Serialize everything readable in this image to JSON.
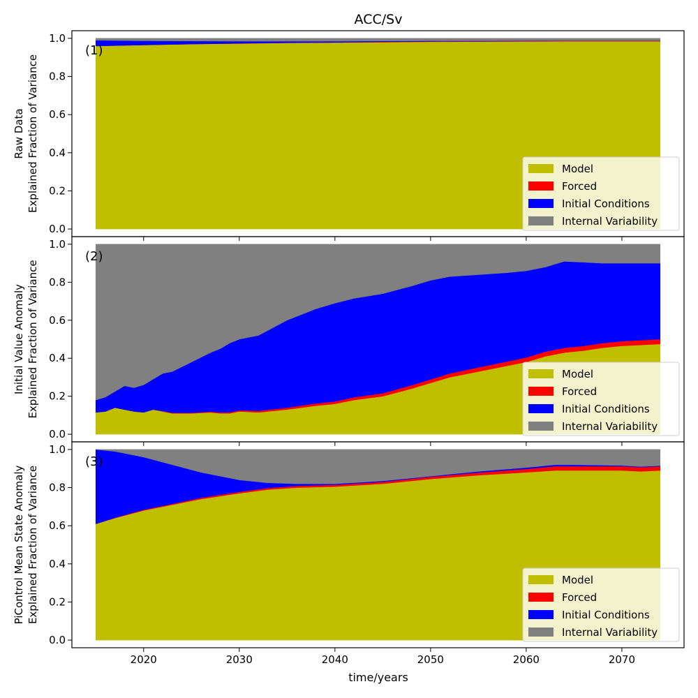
{
  "title": "ACC/Sv",
  "xlabel": "time/years",
  "x_ticks": [
    2020,
    2030,
    2040,
    2050,
    2060,
    2070
  ],
  "y_ticks": [
    0.0,
    0.2,
    0.4,
    0.6,
    0.8,
    1.0
  ],
  "legend": [
    "Model",
    "Forced",
    "Initial Conditions",
    "Internal Variability"
  ],
  "colors": {
    "Model": "#bfbf00",
    "Forced": "#ff0000",
    "Initial Conditions": "#0000ff",
    "Internal Variability": "#808080"
  },
  "chart_data": [
    {
      "type": "area",
      "stacked": true,
      "panel_label": "(1)",
      "ylabel_line1": "Raw Data",
      "ylabel_line2": "Explained Fraction of Variance",
      "xlim": [
        2012.5,
        2076.5
      ],
      "ylim": [
        -0.04,
        1.04
      ],
      "legend_position": "bottom-right",
      "x": [
        2015,
        2020,
        2025,
        2030,
        2035,
        2040,
        2045,
        2050,
        2055,
        2060,
        2065,
        2070,
        2074
      ],
      "series": [
        {
          "name": "Model",
          "values": [
            0.96,
            0.965,
            0.97,
            0.973,
            0.976,
            0.978,
            0.98,
            0.982,
            0.983,
            0.984,
            0.985,
            0.985,
            0.985
          ]
        },
        {
          "name": "Forced",
          "values": [
            0.0,
            0.0,
            0.0,
            0.001,
            0.001,
            0.001,
            0.002,
            0.002,
            0.002,
            0.002,
            0.002,
            0.002,
            0.002
          ]
        },
        {
          "name": "Initial Conditions",
          "values": [
            0.03,
            0.022,
            0.016,
            0.011,
            0.008,
            0.006,
            0.004,
            0.003,
            0.002,
            0.002,
            0.001,
            0.001,
            0.001
          ]
        },
        {
          "name": "Internal Variability",
          "values": [
            0.01,
            0.013,
            0.014,
            0.015,
            0.015,
            0.015,
            0.014,
            0.013,
            0.013,
            0.012,
            0.012,
            0.012,
            0.012
          ]
        }
      ]
    },
    {
      "type": "area",
      "stacked": true,
      "panel_label": "(2)",
      "ylabel_line1": "Initial Value Anomaly",
      "ylabel_line2": "Explained Fraction of Variance",
      "xlim": [
        2012.5,
        2076.5
      ],
      "ylim": [
        -0.04,
        1.04
      ],
      "legend_position": "bottom-right",
      "x": [
        2015,
        2016,
        2017,
        2018,
        2019,
        2020,
        2021,
        2022,
        2023,
        2025,
        2027,
        2028,
        2029,
        2030,
        2032,
        2035,
        2038,
        2040,
        2042,
        2045,
        2048,
        2050,
        2052,
        2055,
        2058,
        2060,
        2062,
        2064,
        2066,
        2068,
        2070,
        2072,
        2074
      ],
      "series": [
        {
          "name": "Model",
          "values": [
            0.115,
            0.12,
            0.14,
            0.13,
            0.12,
            0.115,
            0.13,
            0.12,
            0.11,
            0.11,
            0.115,
            0.11,
            0.11,
            0.12,
            0.115,
            0.13,
            0.15,
            0.16,
            0.18,
            0.2,
            0.24,
            0.27,
            0.3,
            0.33,
            0.36,
            0.38,
            0.41,
            0.43,
            0.44,
            0.455,
            0.465,
            0.47,
            0.475
          ]
        },
        {
          "name": "Forced",
          "values": [
            0.0,
            0.0,
            0.0,
            0.0,
            0.0,
            0.0,
            0.0,
            0.002,
            0.003,
            0.003,
            0.004,
            0.005,
            0.006,
            0.006,
            0.008,
            0.01,
            0.012,
            0.013,
            0.015,
            0.016,
            0.018,
            0.019,
            0.02,
            0.022,
            0.023,
            0.024,
            0.025,
            0.025,
            0.025,
            0.025,
            0.025,
            0.025,
            0.025
          ]
        },
        {
          "name": "Initial Conditions",
          "values": [
            0.065,
            0.075,
            0.085,
            0.125,
            0.125,
            0.145,
            0.16,
            0.198,
            0.217,
            0.267,
            0.311,
            0.335,
            0.364,
            0.374,
            0.397,
            0.46,
            0.498,
            0.517,
            0.52,
            0.524,
            0.522,
            0.521,
            0.51,
            0.488,
            0.467,
            0.456,
            0.445,
            0.455,
            0.44,
            0.42,
            0.41,
            0.405,
            0.4
          ]
        },
        {
          "name": "Internal Variability",
          "values": [
            0.82,
            0.805,
            0.775,
            0.745,
            0.755,
            0.74,
            0.71,
            0.68,
            0.67,
            0.62,
            0.57,
            0.55,
            0.52,
            0.5,
            0.48,
            0.4,
            0.34,
            0.31,
            0.285,
            0.26,
            0.22,
            0.19,
            0.17,
            0.16,
            0.15,
            0.14,
            0.12,
            0.09,
            0.095,
            0.1,
            0.1,
            0.1,
            0.1
          ]
        }
      ]
    },
    {
      "type": "area",
      "stacked": true,
      "panel_label": "(3)",
      "ylabel_line1": "PiControl Mean State Anomaly",
      "ylabel_line2": "Explained Fraction of Variance",
      "xlim": [
        2012.5,
        2076.5
      ],
      "ylim": [
        -0.04,
        1.04
      ],
      "legend_position": "bottom-right",
      "x": [
        2015,
        2017,
        2020,
        2023,
        2026,
        2030,
        2033,
        2036,
        2040,
        2045,
        2050,
        2055,
        2060,
        2063,
        2065,
        2070,
        2072,
        2074
      ],
      "series": [
        {
          "name": "Model",
          "values": [
            0.61,
            0.64,
            0.68,
            0.71,
            0.74,
            0.77,
            0.79,
            0.8,
            0.805,
            0.82,
            0.845,
            0.865,
            0.88,
            0.89,
            0.89,
            0.89,
            0.885,
            0.89
          ]
        },
        {
          "name": "Forced",
          "values": [
            0.0,
            0.002,
            0.004,
            0.005,
            0.007,
            0.008,
            0.008,
            0.009,
            0.01,
            0.01,
            0.012,
            0.014,
            0.018,
            0.022,
            0.022,
            0.022,
            0.022,
            0.022
          ]
        },
        {
          "name": "Initial Conditions",
          "values": [
            0.39,
            0.348,
            0.276,
            0.205,
            0.133,
            0.062,
            0.027,
            0.011,
            0.005,
            0.005,
            0.003,
            0.006,
            0.007,
            0.008,
            0.008,
            0.004,
            0.003,
            0.003
          ]
        },
        {
          "name": "Internal Variability",
          "values": [
            0.0,
            0.01,
            0.04,
            0.08,
            0.12,
            0.16,
            0.175,
            0.18,
            0.18,
            0.165,
            0.14,
            0.115,
            0.095,
            0.08,
            0.08,
            0.084,
            0.09,
            0.085
          ]
        }
      ]
    }
  ]
}
